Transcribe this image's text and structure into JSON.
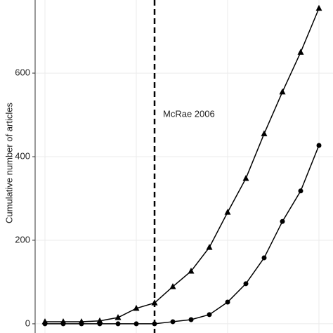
{
  "chart_data": {
    "type": "line",
    "y_label": "Cumulative number of articles",
    "annotation": "McRae 2006",
    "categories": [
      null,
      null,
      null,
      null,
      null,
      null,
      null,
      null,
      null,
      null,
      null,
      null,
      null,
      null,
      null,
      null
    ],
    "series": [
      {
        "name": "triangle",
        "marker": "triangle",
        "color": "#000000",
        "values": [
          5,
          5,
          5,
          7,
          15,
          37,
          50,
          89,
          126,
          183,
          267,
          348,
          455,
          555,
          650,
          755
        ]
      },
      {
        "name": "circle",
        "marker": "circle",
        "color": "#000000",
        "values": [
          0,
          0,
          0,
          0,
          0,
          0,
          0,
          5,
          10,
          22,
          52,
          96,
          158,
          245,
          318,
          427
        ]
      }
    ],
    "ylim": [
      -22,
      775
    ],
    "yticks": [
      0,
      200,
      400,
      600
    ],
    "grid": true
  }
}
